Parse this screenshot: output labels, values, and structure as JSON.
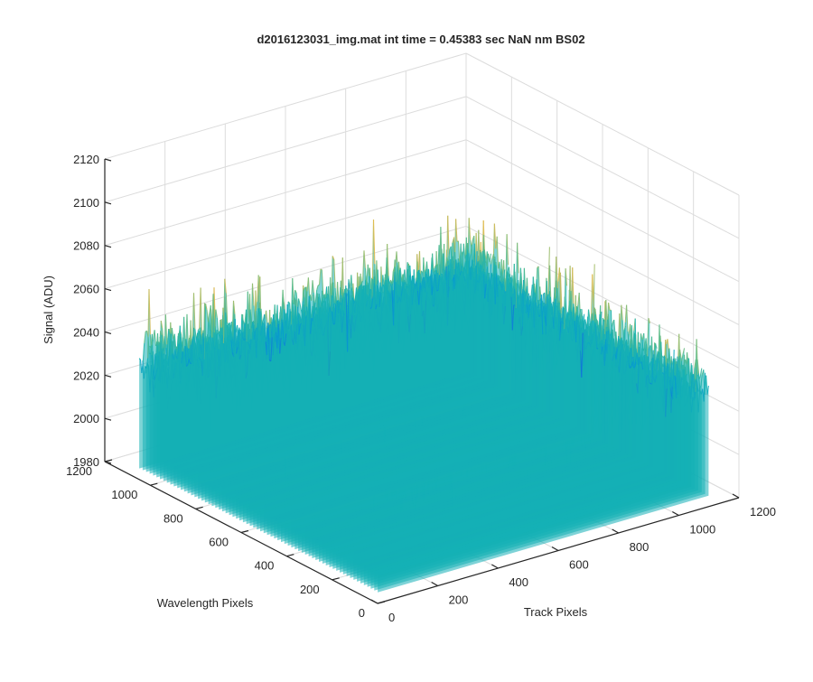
{
  "chart_data": {
    "type": "surface",
    "title": "d2016123031_img.mat int time = 0.45383 sec  NaN nm BS02",
    "xlabel": "Track Pixels",
    "ylabel": "Wavelength Pixels",
    "zlabel": "Signal (ADU)",
    "x_ticks": [
      "0",
      "200",
      "400",
      "600",
      "800",
      "1000",
      "1200"
    ],
    "y_ticks": [
      "0",
      "200",
      "400",
      "600",
      "800",
      "1000",
      "1200"
    ],
    "z_ticks": [
      "1980",
      "2000",
      "2020",
      "2040",
      "2060",
      "2080",
      "2100",
      "2120"
    ],
    "xlim": [
      0,
      1200
    ],
    "ylim": [
      0,
      1200
    ],
    "zlim": [
      1980,
      2120
    ],
    "data_extent": {
      "x": [
        1,
        1100
      ],
      "y": [
        1,
        1050
      ]
    },
    "signal_mean": 2035,
    "signal_range_typical": [
      2005,
      2075
    ],
    "grid": true,
    "colormap": "parula"
  }
}
